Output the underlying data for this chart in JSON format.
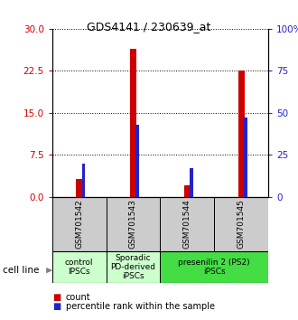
{
  "title": "GDS4141 / 230639_at",
  "samples": [
    "GSM701542",
    "GSM701543",
    "GSM701544",
    "GSM701545"
  ],
  "count_values": [
    3.2,
    26.5,
    2.0,
    22.5
  ],
  "percentile_values": [
    20.0,
    43.0,
    17.0,
    47.0
  ],
  "left_ylim": [
    0,
    30
  ],
  "right_ylim": [
    0,
    100
  ],
  "left_yticks": [
    0,
    7.5,
    15,
    22.5,
    30
  ],
  "right_yticks": [
    0,
    25,
    50,
    75,
    100
  ],
  "right_yticklabels": [
    "0",
    "25",
    "50",
    "75",
    "100%"
  ],
  "count_color": "#cc0000",
  "percentile_color": "#2222cc",
  "red_bar_width": 0.12,
  "blue_bar_width": 0.06,
  "group_defs": [
    {
      "start": 0,
      "end": 0,
      "label": "control\nIPSCs",
      "color": "#ccffcc"
    },
    {
      "start": 1,
      "end": 1,
      "label": "Sporadic\nPD-derived\niPSCs",
      "color": "#ccffcc"
    },
    {
      "start": 2,
      "end": 3,
      "label": "presenilin 2 (PS2)\niPSCs",
      "color": "#44dd44"
    }
  ],
  "cell_line_label": "cell line",
  "legend_count": "count",
  "legend_percentile": "percentile rank within the sample",
  "sample_box_color": "#cccccc",
  "title_fontsize": 9,
  "tick_fontsize": 7.5,
  "sample_fontsize": 6.5,
  "group_fontsize": 6.5
}
